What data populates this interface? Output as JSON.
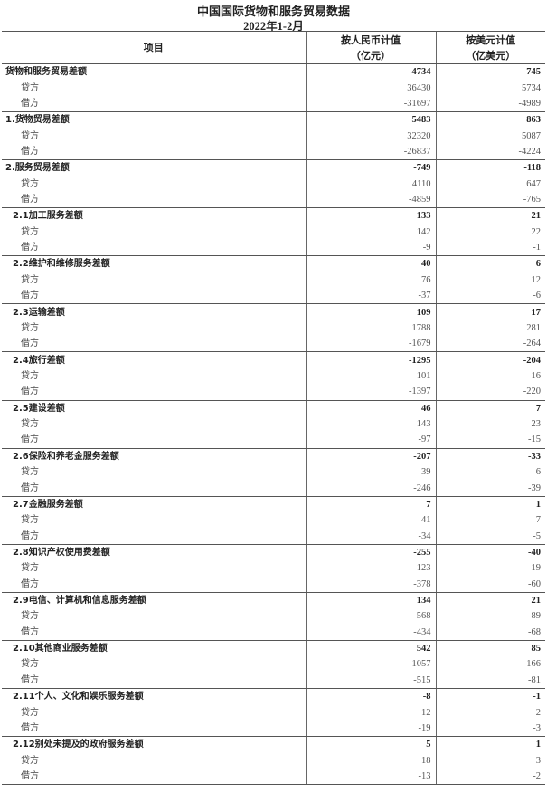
{
  "title": "中国国际货物和服务贸易数据",
  "subtitle": "2022年1-2月",
  "headers": {
    "item": "项目",
    "rmb": "按人民币计值",
    "rmb_unit": "（亿元）",
    "usd": "按美元计值",
    "usd_unit": "（亿美元）"
  },
  "groups": [
    {
      "label": "货物和服务贸易差额",
      "level": 0,
      "rows": [
        [
          "4734",
          "745"
        ],
        [
          "贷方",
          "36430",
          "5734"
        ],
        [
          "借方",
          "-31697",
          "-4989"
        ]
      ]
    },
    {
      "label": "1.货物贸易差额",
      "level": 0,
      "rows": [
        [
          "5483",
          "863"
        ],
        [
          "贷方",
          "32320",
          "5087"
        ],
        [
          "借方",
          "-26837",
          "-4224"
        ]
      ]
    },
    {
      "label": "2.服务贸易差额",
      "level": 0,
      "rows": [
        [
          "-749",
          "-118"
        ],
        [
          "贷方",
          "4110",
          "647"
        ],
        [
          "借方",
          "-4859",
          "-765"
        ]
      ]
    },
    {
      "label": "2.1加工服务差额",
      "level": 1,
      "rows": [
        [
          "133",
          "21"
        ],
        [
          "贷方",
          "142",
          "22"
        ],
        [
          "借方",
          "-9",
          "-1"
        ]
      ]
    },
    {
      "label": "2.2维护和维修服务差额",
      "level": 1,
      "rows": [
        [
          "40",
          "6"
        ],
        [
          "贷方",
          "76",
          "12"
        ],
        [
          "借方",
          "-37",
          "-6"
        ]
      ]
    },
    {
      "label": "2.3运输差额",
      "level": 1,
      "rows": [
        [
          "109",
          "17"
        ],
        [
          "贷方",
          "1788",
          "281"
        ],
        [
          "借方",
          "-1679",
          "-264"
        ]
      ]
    },
    {
      "label": "2.4旅行差额",
      "level": 1,
      "rows": [
        [
          "-1295",
          "-204"
        ],
        [
          "贷方",
          "101",
          "16"
        ],
        [
          "借方",
          "-1397",
          "-220"
        ]
      ]
    },
    {
      "label": "2.5建设差额",
      "level": 1,
      "rows": [
        [
          "46",
          "7"
        ],
        [
          "贷方",
          "143",
          "23"
        ],
        [
          "借方",
          "-97",
          "-15"
        ]
      ]
    },
    {
      "label": "2.6保险和养老金服务差额",
      "level": 1,
      "rows": [
        [
          "-207",
          "-33"
        ],
        [
          "贷方",
          "39",
          "6"
        ],
        [
          "借方",
          "-246",
          "-39"
        ]
      ]
    },
    {
      "label": "2.7金融服务差额",
      "level": 1,
      "rows": [
        [
          "7",
          "1"
        ],
        [
          "贷方",
          "41",
          "7"
        ],
        [
          "借方",
          "-34",
          "-5"
        ]
      ]
    },
    {
      "label": "2.8知识产权使用费差额",
      "level": 1,
      "rows": [
        [
          "-255",
          "-40"
        ],
        [
          "贷方",
          "123",
          "19"
        ],
        [
          "借方",
          "-378",
          "-60"
        ]
      ]
    },
    {
      "label": "2.9电信、计算机和信息服务差额",
      "level": 1,
      "rows": [
        [
          "134",
          "21"
        ],
        [
          "贷方",
          "568",
          "89"
        ],
        [
          "借方",
          "-434",
          "-68"
        ]
      ]
    },
    {
      "label": "2.10其他商业服务差额",
      "level": 1,
      "rows": [
        [
          "542",
          "85"
        ],
        [
          "贷方",
          "1057",
          "166"
        ],
        [
          "借方",
          "-515",
          "-81"
        ]
      ]
    },
    {
      "label": "2.11个人、文化和娱乐服务差额",
      "level": 1,
      "rows": [
        [
          "-8",
          "-1"
        ],
        [
          "贷方",
          "12",
          "2"
        ],
        [
          "借方",
          "-19",
          "-3"
        ]
      ]
    },
    {
      "label": "2.12别处未提及的政府服务差额",
      "level": 1,
      "rows": [
        [
          "5",
          "1"
        ],
        [
          "贷方",
          "18",
          "3"
        ],
        [
          "借方",
          "-13",
          "-2"
        ]
      ]
    }
  ]
}
